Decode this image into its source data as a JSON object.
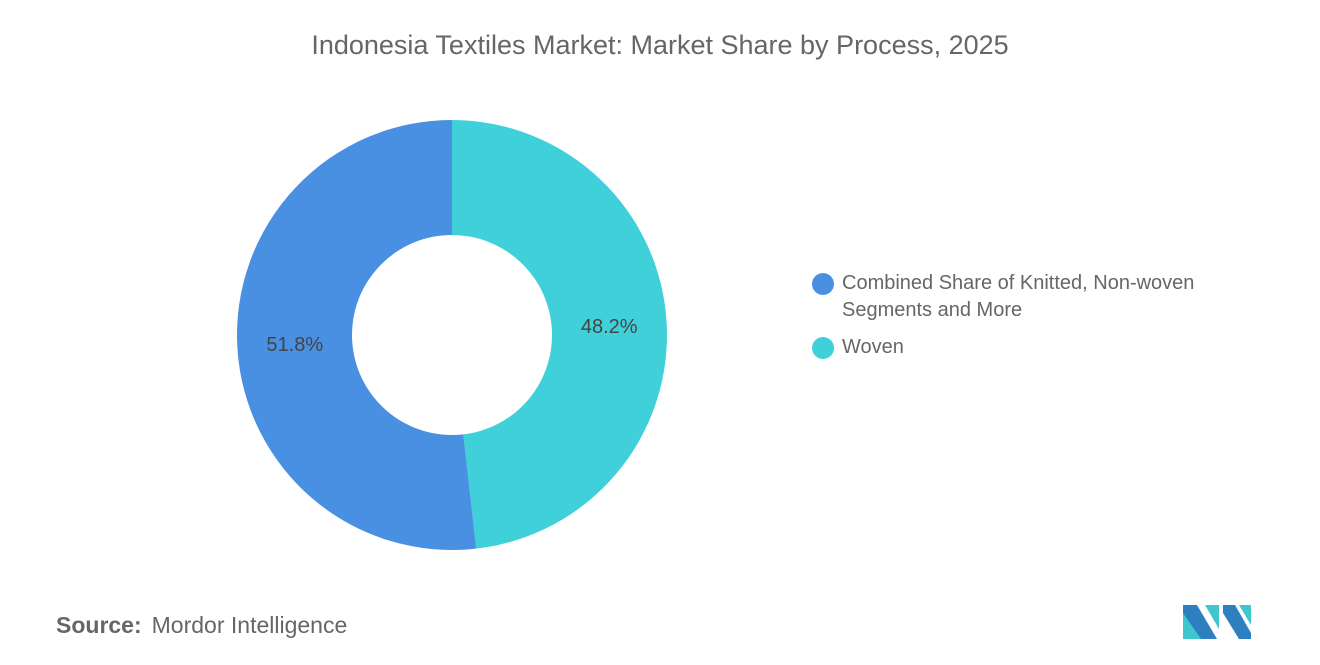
{
  "chart_data": {
    "type": "pie",
    "donut": true,
    "title": "Indonesia Textiles Market: Market Share by Process, 2025",
    "slices": [
      {
        "label": "Woven",
        "value": 48.2,
        "display": "48.2%",
        "color": "#40D0DA"
      },
      {
        "label": "Combined Share of Knitted, Non-woven Segments and More",
        "value": 51.8,
        "display": "51.8%",
        "color": "#4A90E2"
      }
    ],
    "legend": {
      "placement": "right",
      "entries": [
        {
          "label": "Combined Share of Knitted, Non-woven Segments and More",
          "color": "#4A90E2"
        },
        {
          "label": "Woven",
          "color": "#40D0DA"
        }
      ]
    }
  },
  "source": {
    "label": "Source:",
    "value": "Mordor Intelligence"
  },
  "logo": {
    "text": "Mordor Intelligence logo",
    "colors": [
      "#2E7FC0",
      "#40C6CE"
    ]
  }
}
